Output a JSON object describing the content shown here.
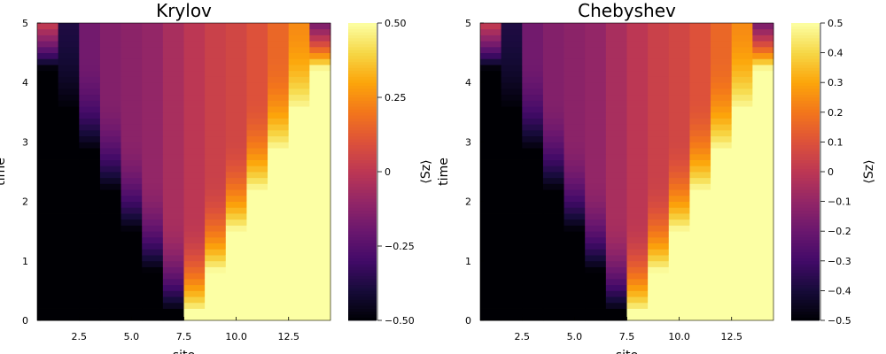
{
  "chart_data": [
    {
      "type": "heatmap",
      "title": "Krylov",
      "xlabel": "site",
      "ylabel": "time",
      "colorbar_label": "⟨Sz⟩",
      "x": [
        1,
        2,
        3,
        4,
        5,
        6,
        7,
        8,
        9,
        10,
        11,
        12,
        13,
        14
      ],
      "xlim": [
        0.5,
        14.5
      ],
      "ylim": [
        0,
        5
      ],
      "x_ticks": [
        2.5,
        5.0,
        7.5,
        10.0,
        12.5
      ],
      "x_tick_labels": [
        "2.5",
        "5.0",
        "7.5",
        "10.0",
        "12.5"
      ],
      "y_ticks": [
        0,
        1,
        2,
        3,
        4,
        5
      ],
      "y_tick_labels": [
        "0",
        "1",
        "2",
        "3",
        "4",
        "5"
      ],
      "clim": [
        -0.5,
        0.5
      ],
      "colorbar_ticks": [
        -0.5,
        -0.25,
        0,
        0.25,
        0.5
      ],
      "colorbar_tick_labels": [
        "−0.50",
        "−0.25",
        "0",
        "0.25",
        "0.50"
      ],
      "colormap": "inferno",
      "initial_state": [
        -0.5,
        -0.5,
        -0.5,
        -0.5,
        -0.5,
        -0.5,
        -0.5,
        0.5,
        0.5,
        0.5,
        0.5,
        0.5,
        0.5,
        0.5
      ],
      "final_state": [
        0.22,
        -0.38,
        -0.18,
        -0.14,
        -0.12,
        -0.1,
        -0.05,
        0.0,
        0.04,
        0.06,
        0.1,
        0.16,
        0.24,
        -0.42
      ],
      "time_samples": 50
    },
    {
      "type": "heatmap",
      "title": "Chebyshev",
      "xlabel": "site",
      "ylabel": "time",
      "colorbar_label": "⟨Sz⟩",
      "x": [
        1,
        2,
        3,
        4,
        5,
        6,
        7,
        8,
        9,
        10,
        11,
        12,
        13,
        14
      ],
      "xlim": [
        0.5,
        14.5
      ],
      "ylim": [
        0,
        5
      ],
      "x_ticks": [
        2.5,
        5.0,
        7.5,
        10.0,
        12.5
      ],
      "x_tick_labels": [
        "2.5",
        "5.0",
        "7.5",
        "10.0",
        "12.5"
      ],
      "y_ticks": [
        0,
        1,
        2,
        3,
        4,
        5
      ],
      "y_tick_labels": [
        "0",
        "1",
        "2",
        "3",
        "4",
        "5"
      ],
      "clim": [
        -0.5,
        0.5
      ],
      "colorbar_ticks": [
        -0.5,
        -0.4,
        -0.3,
        -0.2,
        -0.1,
        0,
        0.1,
        0.2,
        0.3,
        0.4,
        0.5
      ],
      "colorbar_tick_labels": [
        "−0.5",
        "−0.4",
        "−0.3",
        "−0.2",
        "−0.1",
        "0",
        "0.1",
        "0.2",
        "0.3",
        "0.4",
        "0.5"
      ],
      "colormap": "inferno",
      "initial_state": [
        -0.5,
        -0.5,
        -0.5,
        -0.5,
        -0.5,
        -0.5,
        -0.5,
        0.5,
        0.5,
        0.5,
        0.5,
        0.5,
        0.5,
        0.5
      ],
      "final_state": [
        0.22,
        -0.38,
        -0.18,
        -0.14,
        -0.12,
        -0.1,
        -0.05,
        0.0,
        0.04,
        0.06,
        0.1,
        0.16,
        0.24,
        -0.42
      ],
      "time_samples": 50
    }
  ]
}
